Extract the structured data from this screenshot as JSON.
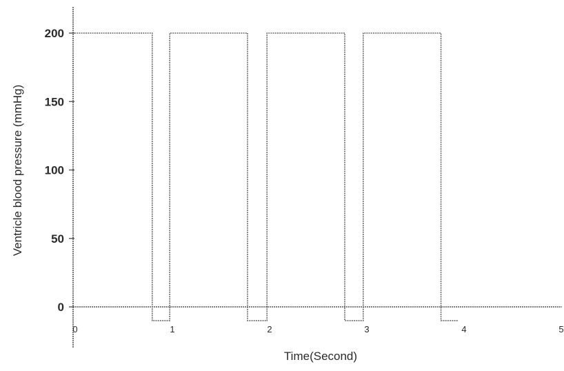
{
  "chart_data": {
    "type": "line",
    "title": "",
    "xlabel": "Time(Second)",
    "ylabel": "Ventricle blood pressure (mmHg)",
    "xlim": [
      0,
      5
    ],
    "ylim": [
      -20,
      210
    ],
    "x_ticks": [
      "0",
      "1",
      "2",
      "3",
      "4",
      "5"
    ],
    "y_ticks": [
      "0",
      "50",
      "100",
      "150",
      "200"
    ],
    "grid": false,
    "series": [
      {
        "x": [
          0,
          0.8,
          0.8,
          0.98,
          0.98,
          1.78,
          1.78,
          1.98,
          1.98,
          2.78,
          2.78,
          2.97,
          2.97,
          3.77,
          3.77,
          3.95
        ],
        "y": [
          200,
          200,
          -10,
          -10,
          200,
          200,
          -10,
          -10,
          200,
          200,
          -10,
          -10,
          200,
          200,
          -10,
          -10
        ]
      }
    ]
  }
}
